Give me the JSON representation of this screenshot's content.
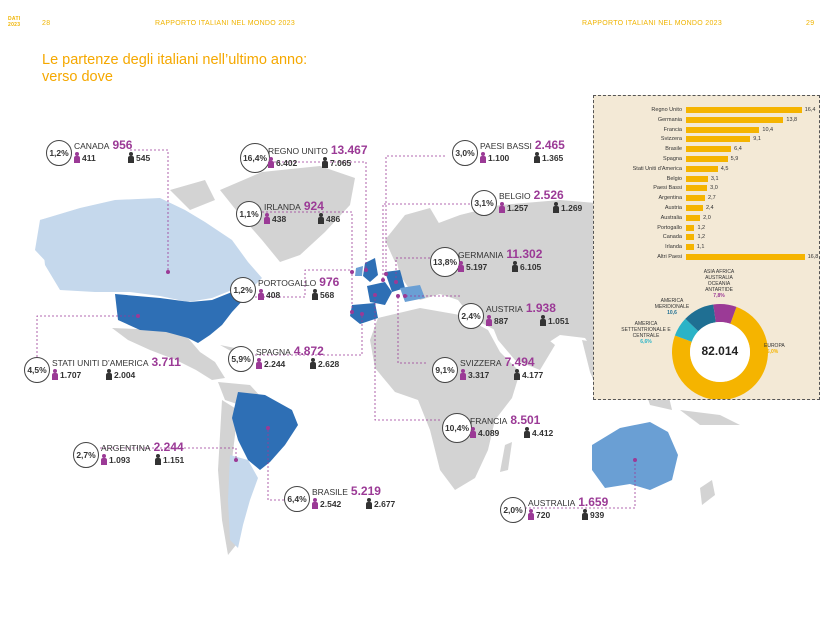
{
  "header": {
    "left_page": "28",
    "left_title": "RAPPORTO ITALIANI NEL MONDO 2023",
    "right_title": "RAPPORTO ITALIANI NEL MONDO 2023",
    "right_page": "29",
    "logo_text": "DATI 2023"
  },
  "title": {
    "line1": "Le partenze degli italiani nell’ultimo anno:",
    "line2": "verso dove"
  },
  "countries": [
    {
      "key": "canada",
      "name": "CANADA",
      "total": "956",
      "pct": "1,2%",
      "female": "411",
      "male": "545"
    },
    {
      "key": "regno_unito",
      "name": "REGNO UNITO",
      "total": "13.467",
      "pct": "16,4%",
      "female": "6.402",
      "male": "7.065"
    },
    {
      "key": "paesi_bassi",
      "name": "PAESI BASSI",
      "total": "2.465",
      "pct": "3,0%",
      "female": "1.100",
      "male": "1.365"
    },
    {
      "key": "irlanda",
      "name": "IRLANDA",
      "total": "924",
      "pct": "1,1%",
      "female": "438",
      "male": "486"
    },
    {
      "key": "belgio",
      "name": "BELGIO",
      "total": "2.526",
      "pct": "3,1%",
      "female": "1.257",
      "male": "1.269"
    },
    {
      "key": "germania",
      "name": "GERMANIA",
      "total": "11.302",
      "pct": "13,8%",
      "female": "5.197",
      "male": "6.105"
    },
    {
      "key": "portogallo",
      "name": "PORTOGALLO",
      "total": "976",
      "pct": "1,2%",
      "female": "408",
      "male": "568"
    },
    {
      "key": "austria",
      "name": "AUSTRIA",
      "total": "1.938",
      "pct": "2,4%",
      "female": "887",
      "male": "1.051"
    },
    {
      "key": "spagna",
      "name": "SPAGNA",
      "total": "4.872",
      "pct": "5,9%",
      "female": "2.244",
      "male": "2.628"
    },
    {
      "key": "svizzera",
      "name": "SVIZZERA",
      "total": "7.494",
      "pct": "9,1%",
      "female": "3.317",
      "male": "4.177"
    },
    {
      "key": "usa",
      "name": "STATI UNITI D’AMERICA",
      "total": "3.711",
      "pct": "4,5%",
      "female": "1.707",
      "male": "2.004"
    },
    {
      "key": "francia",
      "name": "FRANCIA",
      "total": "8.501",
      "pct": "10,4%",
      "female": "4.089",
      "male": "4.412"
    },
    {
      "key": "argentina",
      "name": "ARGENTINA",
      "total": "2.244",
      "pct": "2,7%",
      "female": "1.093",
      "male": "1.151"
    },
    {
      "key": "brasile",
      "name": "BRASILE",
      "total": "5.219",
      "pct": "6,4%",
      "female": "2.542",
      "male": "2.677"
    },
    {
      "key": "australia",
      "name": "AUSTRALIA",
      "total": "1.659",
      "pct": "2,0%",
      "female": "720",
      "male": "939"
    }
  ],
  "chart_data": [
    {
      "type": "bar",
      "orientation": "horizontal",
      "categories": [
        "Regno Unito",
        "Germania",
        "Francia",
        "Svizzera",
        "Brasile",
        "Spagna",
        "Stati Uniti d'America",
        "Belgio",
        "Paesi Bassi",
        "Argentina",
        "Austria",
        "Australia",
        "Portogallo",
        "Canada",
        "Irlanda",
        "Altri Paesi"
      ],
      "values": [
        16.4,
        13.8,
        10.4,
        9.1,
        6.4,
        5.9,
        4.5,
        3.1,
        3.0,
        2.7,
        2.4,
        2.0,
        1.2,
        1.2,
        1.1,
        16.8
      ],
      "value_labels": [
        "16,4",
        "13,8",
        "10,4",
        "9,1",
        "6,4",
        "5,9",
        "4,5",
        "3,1",
        "3,0",
        "2,7",
        "2,4",
        "2,0",
        "1,2",
        "1,2",
        "1,1",
        "16,8"
      ],
      "color": "#f5b400"
    },
    {
      "type": "pie",
      "center_label": "82.014",
      "slices": [
        {
          "name": "EUROPA",
          "value": 75.0,
          "value_label": "75,0%",
          "color": "#f5b400"
        },
        {
          "name": "AMERICA SETTENTRIONALE E CENTRALE",
          "value": 6.6,
          "value_label": "6,6%",
          "color": "#2bb3c7"
        },
        {
          "name": "AMERICA MERIDIONALE",
          "value": 10.6,
          "value_label": "10,6",
          "color": "#1f6f93"
        },
        {
          "name": "ASIA AFRICA AUSTRALIA OCEANIA ANTARTIDE",
          "value": 7.8,
          "value_label": "7,8%",
          "color": "#9b3a96"
        }
      ]
    }
  ]
}
